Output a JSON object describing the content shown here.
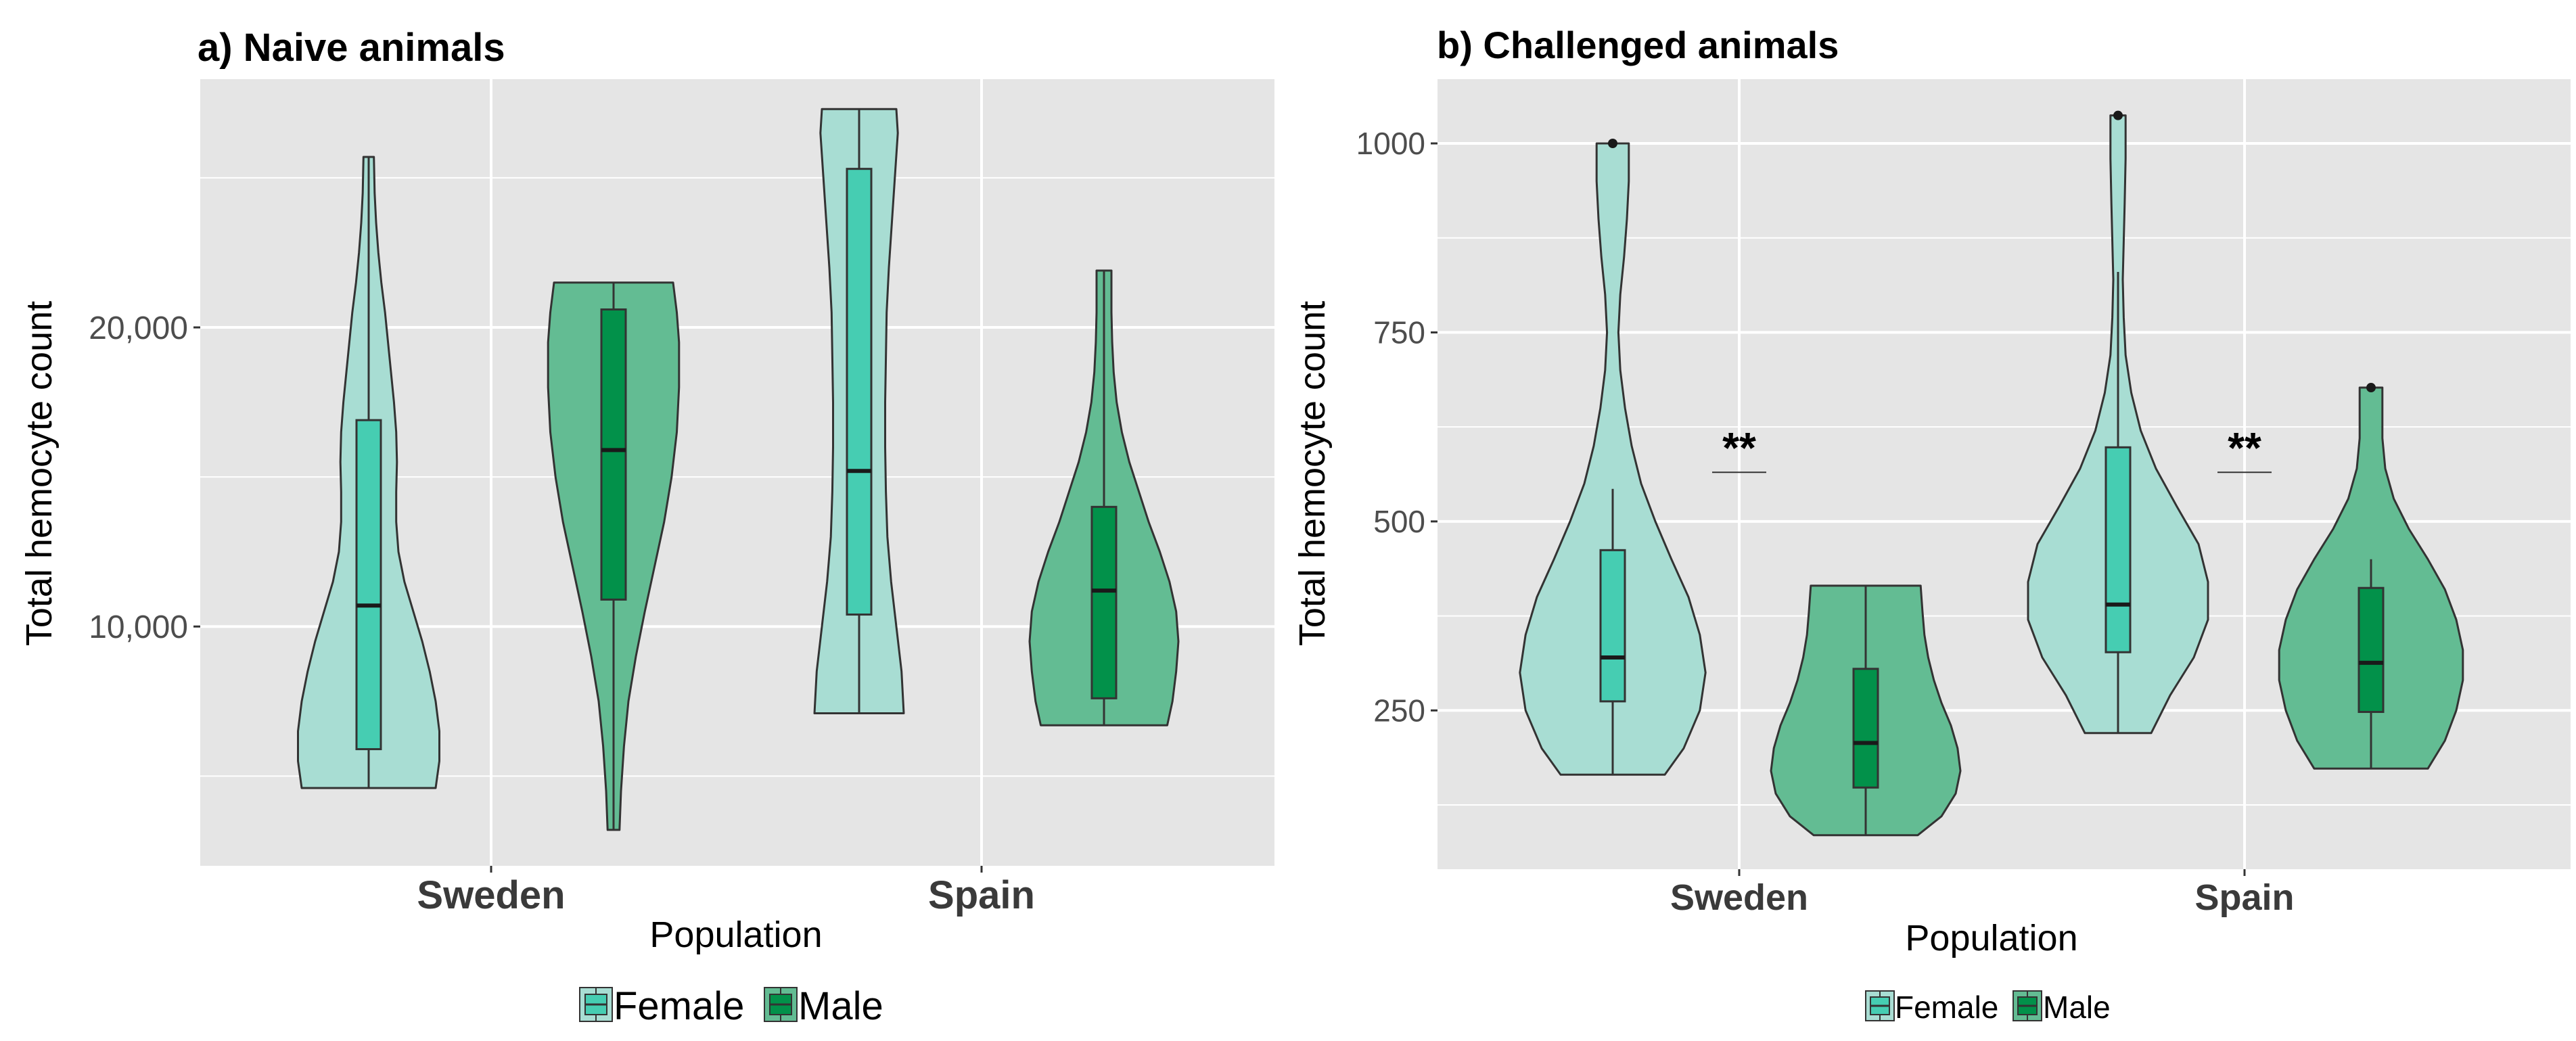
{
  "colors": {
    "panel_bg": "#e5e5e5",
    "grid": "#ffffff",
    "female_violin": "#a8ddd3",
    "male_violin": "#63bc93",
    "female_box": "#46cdb2",
    "male_box": "#02914a",
    "outline": "#333333"
  },
  "legend": {
    "female": "Female",
    "male": "Male"
  },
  "chart_data": [
    {
      "type": "violin",
      "title": "a) Naive animals",
      "xlabel": "Population",
      "ylabel": "Total hemocyte count",
      "categories": [
        "Sweden",
        "Spain"
      ],
      "ylim": [
        2000,
        28300
      ],
      "yticks": [
        10000,
        20000
      ],
      "ytick_labels": [
        "10,000",
        "20,000"
      ],
      "series": [
        {
          "name": "Female",
          "groups": [
            {
              "category": "Sweden",
              "min": 4600,
              "q1": 5900,
              "median": 10700,
              "q3": 16900,
              "max": 25700,
              "density": [
                [
                  4600,
                  0.9
                ],
                [
                  5500,
                  0.95
                ],
                [
                  6500,
                  0.95
                ],
                [
                  7500,
                  0.9
                ],
                [
                  8500,
                  0.82
                ],
                [
                  9500,
                  0.72
                ],
                [
                  10500,
                  0.6
                ],
                [
                  11500,
                  0.48
                ],
                [
                  12500,
                  0.4
                ],
                [
                  13500,
                  0.37
                ],
                [
                  14500,
                  0.37
                ],
                [
                  15500,
                  0.38
                ],
                [
                  16500,
                  0.37
                ],
                [
                  17500,
                  0.34
                ],
                [
                  18500,
                  0.3
                ],
                [
                  19500,
                  0.26
                ],
                [
                  20500,
                  0.22
                ],
                [
                  21500,
                  0.17
                ],
                [
                  22500,
                  0.13
                ],
                [
                  23500,
                  0.1
                ],
                [
                  24500,
                  0.08
                ],
                [
                  25700,
                  0.07
                ]
              ]
            },
            {
              "category": "Spain",
              "min": 7100,
              "q1": 10400,
              "median": 15200,
              "q3": 25300,
              "max": 27300,
              "density": [
                [
                  7100,
                  0.6
                ],
                [
                  8500,
                  0.57
                ],
                [
                  10000,
                  0.5
                ],
                [
                  11500,
                  0.43
                ],
                [
                  13000,
                  0.38
                ],
                [
                  14500,
                  0.36
                ],
                [
                  16000,
                  0.35
                ],
                [
                  17500,
                  0.35
                ],
                [
                  19000,
                  0.36
                ],
                [
                  20500,
                  0.37
                ],
                [
                  22000,
                  0.4
                ],
                [
                  23500,
                  0.44
                ],
                [
                  25000,
                  0.48
                ],
                [
                  26500,
                  0.52
                ],
                [
                  27300,
                  0.5
                ]
              ]
            }
          ]
        },
        {
          "name": "Male",
          "groups": [
            {
              "category": "Sweden",
              "min": 3200,
              "q1": 10900,
              "median": 15900,
              "q3": 20600,
              "max": 21500,
              "density": [
                [
                  3200,
                  0.08
                ],
                [
                  4500,
                  0.1
                ],
                [
                  6000,
                  0.14
                ],
                [
                  7500,
                  0.2
                ],
                [
                  9000,
                  0.3
                ],
                [
                  10500,
                  0.42
                ],
                [
                  12000,
                  0.55
                ],
                [
                  13500,
                  0.68
                ],
                [
                  15000,
                  0.78
                ],
                [
                  16500,
                  0.85
                ],
                [
                  18000,
                  0.88
                ],
                [
                  19500,
                  0.88
                ],
                [
                  20500,
                  0.85
                ],
                [
                  21500,
                  0.8
                ]
              ]
            },
            {
              "category": "Spain",
              "min": 6700,
              "q1": 7600,
              "median": 11200,
              "q3": 14000,
              "max": 21900,
              "density": [
                [
                  6700,
                  0.85
                ],
                [
                  7500,
                  0.92
                ],
                [
                  8500,
                  0.97
                ],
                [
                  9500,
                  1.0
                ],
                [
                  10500,
                  0.97
                ],
                [
                  11500,
                  0.88
                ],
                [
                  12500,
                  0.75
                ],
                [
                  13500,
                  0.6
                ],
                [
                  14500,
                  0.47
                ],
                [
                  15500,
                  0.34
                ],
                [
                  16500,
                  0.24
                ],
                [
                  17500,
                  0.17
                ],
                [
                  18500,
                  0.13
                ],
                [
                  19500,
                  0.11
                ],
                [
                  20500,
                  0.1
                ],
                [
                  21900,
                  0.1
                ]
              ]
            }
          ]
        }
      ]
    },
    {
      "type": "violin",
      "title": "b) Challenged animals",
      "xlabel": "Population",
      "ylabel": "Total hemocyte count",
      "categories": [
        "Sweden",
        "Spain"
      ],
      "ylim": [
        40,
        1085
      ],
      "yticks": [
        250,
        500,
        750,
        1000
      ],
      "ytick_labels": [
        "250",
        "500",
        "750",
        "1000"
      ],
      "annotations": [
        {
          "category": "Sweden",
          "label": "**",
          "y": 565
        },
        {
          "category": "Spain",
          "label": "**",
          "y": 565
        }
      ],
      "series": [
        {
          "name": "Female",
          "groups": [
            {
              "category": "Sweden",
              "min": 165,
              "q1": 262,
              "median": 320,
              "q3": 462,
              "max": 543,
              "outliers": [
                1000
              ],
              "density": [
                [
                  165,
                  0.55
                ],
                [
                  200,
                  0.75
                ],
                [
                  250,
                  0.92
                ],
                [
                  300,
                  0.98
                ],
                [
                  350,
                  0.92
                ],
                [
                  400,
                  0.8
                ],
                [
                  450,
                  0.62
                ],
                [
                  500,
                  0.45
                ],
                [
                  550,
                  0.3
                ],
                [
                  600,
                  0.2
                ],
                [
                  650,
                  0.13
                ],
                [
                  700,
                  0.08
                ],
                [
                  750,
                  0.06
                ],
                [
                  800,
                  0.08
                ],
                [
                  850,
                  0.12
                ],
                [
                  900,
                  0.15
                ],
                [
                  950,
                  0.17
                ],
                [
                  1000,
                  0.17
                ]
              ]
            },
            {
              "category": "Spain",
              "min": 220,
              "q1": 327,
              "median": 390,
              "q3": 598,
              "max": 830,
              "outliers": [
                1037
              ],
              "density": [
                [
                  220,
                  0.35
                ],
                [
                  270,
                  0.55
                ],
                [
                  320,
                  0.8
                ],
                [
                  370,
                  0.95
                ],
                [
                  420,
                  0.95
                ],
                [
                  470,
                  0.85
                ],
                [
                  520,
                  0.62
                ],
                [
                  570,
                  0.4
                ],
                [
                  620,
                  0.24
                ],
                [
                  670,
                  0.14
                ],
                [
                  720,
                  0.08
                ],
                [
                  770,
                  0.06
                ],
                [
                  820,
                  0.05
                ],
                [
                  870,
                  0.06
                ],
                [
                  920,
                  0.07
                ],
                [
                  980,
                  0.08
                ],
                [
                  1037,
                  0.08
                ]
              ]
            }
          ]
        },
        {
          "name": "Male",
          "groups": [
            {
              "category": "Sweden",
              "min": 85,
              "q1": 148,
              "median": 207,
              "q3": 305,
              "max": 415,
              "density": [
                [
                  85,
                  0.55
                ],
                [
                  110,
                  0.8
                ],
                [
                  140,
                  0.95
                ],
                [
                  170,
                  1.0
                ],
                [
                  200,
                  0.97
                ],
                [
                  230,
                  0.9
                ],
                [
                  260,
                  0.8
                ],
                [
                  290,
                  0.72
                ],
                [
                  320,
                  0.66
                ],
                [
                  350,
                  0.62
                ],
                [
                  380,
                  0.6
                ],
                [
                  415,
                  0.58
                ]
              ]
            },
            {
              "category": "Spain",
              "min": 173,
              "q1": 248,
              "median": 313,
              "q3": 412,
              "max": 450,
              "outliers": [
                677
              ],
              "density": [
                [
                  173,
                  0.6
                ],
                [
                  210,
                  0.78
                ],
                [
                  250,
                  0.9
                ],
                [
                  290,
                  0.97
                ],
                [
                  330,
                  0.97
                ],
                [
                  370,
                  0.9
                ],
                [
                  410,
                  0.78
                ],
                [
                  450,
                  0.6
                ],
                [
                  490,
                  0.4
                ],
                [
                  530,
                  0.24
                ],
                [
                  570,
                  0.15
                ],
                [
                  610,
                  0.12
                ],
                [
                  650,
                  0.12
                ],
                [
                  677,
                  0.12
                ]
              ]
            }
          ]
        }
      ]
    }
  ]
}
